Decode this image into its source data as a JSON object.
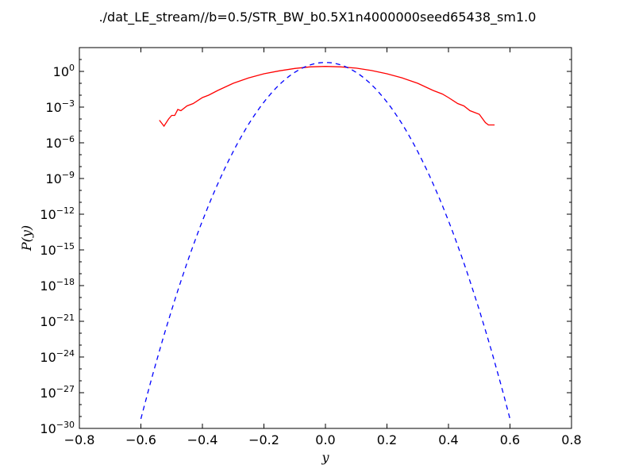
{
  "chart_data": {
    "type": "line",
    "title": "./dat_LE_stream//b=0.5/STR_BW_b0.5X1n4000000seed65438_sm1.0",
    "xlabel": "y",
    "ylabel": "P(y)",
    "xlim": [
      -0.8,
      0.8
    ],
    "ylim_exponent": [
      -30,
      2
    ],
    "yscale": "log",
    "x_ticks": [
      -0.8,
      -0.6,
      -0.4,
      -0.2,
      0.0,
      0.2,
      0.4,
      0.6,
      0.8
    ],
    "x_tick_labels": [
      "−0.8",
      "−0.6",
      "−0.4",
      "−0.2",
      "0.0",
      "0.2",
      "0.4",
      "0.6",
      "0.8"
    ],
    "y_ticks": [
      {
        "base": "10",
        "exp": "0"
      },
      {
        "base": "10",
        "exp": "-3"
      },
      {
        "base": "10",
        "exp": "-6"
      },
      {
        "base": "10",
        "exp": "-9"
      },
      {
        "base": "10",
        "exp": "-12"
      },
      {
        "base": "10",
        "exp": "-15"
      },
      {
        "base": "10",
        "exp": "-18"
      },
      {
        "base": "10",
        "exp": "-21"
      },
      {
        "base": "10",
        "exp": "-24"
      },
      {
        "base": "10",
        "exp": "-27"
      },
      {
        "base": "10",
        "exp": "-30"
      }
    ],
    "grid": false,
    "legend": "none",
    "series": [
      {
        "color": "#ff0000",
        "style": "solid",
        "x": [
          -0.54,
          -0.525,
          -0.51,
          -0.5,
          -0.49,
          -0.48,
          -0.47,
          -0.45,
          -0.43,
          -0.4,
          -0.38,
          -0.35,
          -0.3,
          -0.25,
          -0.2,
          -0.15,
          -0.1,
          -0.05,
          0.0,
          0.05,
          0.1,
          0.15,
          0.2,
          0.25,
          0.3,
          0.35,
          0.38,
          0.4,
          0.43,
          0.45,
          0.47,
          0.5,
          0.52,
          0.53,
          0.55
        ],
        "log10_y": [
          -4.1,
          -4.6,
          -4.0,
          -3.7,
          -3.7,
          -3.2,
          -3.3,
          -2.9,
          -2.7,
          -2.2,
          -2.0,
          -1.6,
          -1.0,
          -0.55,
          -0.2,
          0.05,
          0.25,
          0.38,
          0.42,
          0.38,
          0.27,
          0.07,
          -0.2,
          -0.55,
          -1.0,
          -1.6,
          -1.9,
          -2.2,
          -2.7,
          -2.9,
          -3.3,
          -3.6,
          -4.3,
          -4.5,
          -4.5
        ]
      },
      {
        "color": "#0000ff",
        "style": "dashed",
        "x_range": [
          -0.6,
          0.6
        ],
        "peak_log10": 0.75,
        "edge_log10": -29.2
      }
    ]
  }
}
